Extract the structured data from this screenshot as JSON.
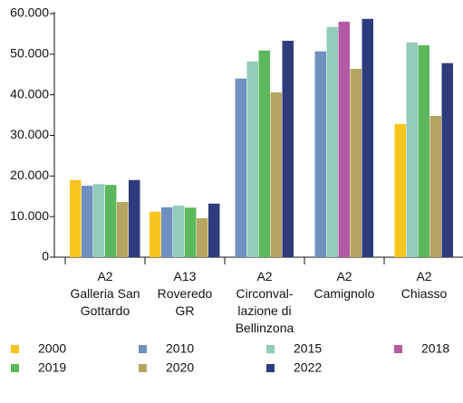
{
  "chart_data": {
    "type": "bar",
    "categories": [
      "A2\nGalleria San\nGottardo",
      "A13\nRoveredo\nGR",
      "A2\nCirconval-\nlazione di\nBellinzona",
      "A2\nCamignolo",
      "A2\nChiasso"
    ],
    "series": [
      {
        "name": "2000",
        "color": "#f7c51e",
        "values": [
          19000,
          11200,
          null,
          null,
          32800
        ]
      },
      {
        "name": "2010",
        "color": "#7090c0",
        "values": [
          17600,
          12300,
          44000,
          50700,
          null
        ]
      },
      {
        "name": "2015",
        "color": "#93cbbd",
        "values": [
          18000,
          12700,
          48200,
          56700,
          52900
        ]
      },
      {
        "name": "2018",
        "color": "#b45aa5",
        "values": [
          null,
          null,
          null,
          58000,
          null
        ]
      },
      {
        "name": "2019",
        "color": "#5cb85c",
        "values": [
          17800,
          12200,
          50900,
          null,
          52200
        ]
      },
      {
        "name": "2020",
        "color": "#b5a562",
        "values": [
          13600,
          9600,
          40600,
          46400,
          34800
        ]
      },
      {
        "name": "2022",
        "color": "#2e3b7c",
        "values": [
          19000,
          13200,
          53300,
          58700,
          47800
        ]
      }
    ],
    "ylim": [
      0,
      60000
    ],
    "yticks": [
      {
        "value": 0,
        "label": "0"
      },
      {
        "value": 10000,
        "label": "10.000"
      },
      {
        "value": 20000,
        "label": "20.000"
      },
      {
        "value": 30000,
        "label": "30.000"
      },
      {
        "value": 40000,
        "label": "40.000"
      },
      {
        "value": 50000,
        "label": "50.000"
      },
      {
        "value": 60000,
        "label": "60.000"
      }
    ],
    "legend": "bottom"
  }
}
